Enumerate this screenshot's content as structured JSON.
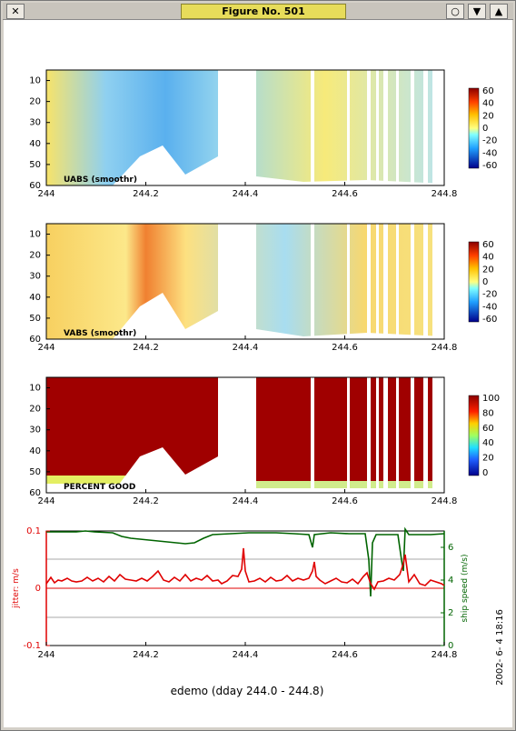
{
  "window": {
    "title": "Figure No. 501",
    "close_icon": "close-icon",
    "buttons": [
      "circle-icon",
      "arrow-down-icon",
      "arrow-up-icon"
    ]
  },
  "figure": {
    "xlabel": "edemo (dday 244.0 - 244.8)",
    "timestamp": "2002- 6- 4  18:16",
    "x_ticks": [
      "244",
      "244.2",
      "244.4",
      "244.6",
      "244.8"
    ],
    "depth_ticks": [
      "10",
      "20",
      "30",
      "40",
      "50",
      "60"
    ],
    "panels": [
      {
        "label": "UABS  (smoothr)",
        "colorbar_ticks": [
          "60",
          "40",
          "20",
          "0",
          "-20",
          "-40",
          "-60"
        ]
      },
      {
        "label": "VABS  (smoothr)",
        "colorbar_ticks": [
          "60",
          "40",
          "20",
          "0",
          "-20",
          "-40",
          "-60"
        ]
      },
      {
        "label": "PERCENT GOOD",
        "colorbar_ticks": [
          "100",
          "80",
          "60",
          "40",
          "20",
          "0"
        ]
      }
    ],
    "bottom_panel": {
      "left_ticks": [
        "0.1",
        "0",
        "-0.1"
      ],
      "right_ticks": [
        "6",
        "4",
        "2",
        "0"
      ],
      "left_label": "jitter: m/s",
      "right_label": "ship speed (m/s)"
    }
  },
  "colors": {
    "jitter": "#e00000",
    "speed": "#006400",
    "percent_good": "#a00000"
  }
}
